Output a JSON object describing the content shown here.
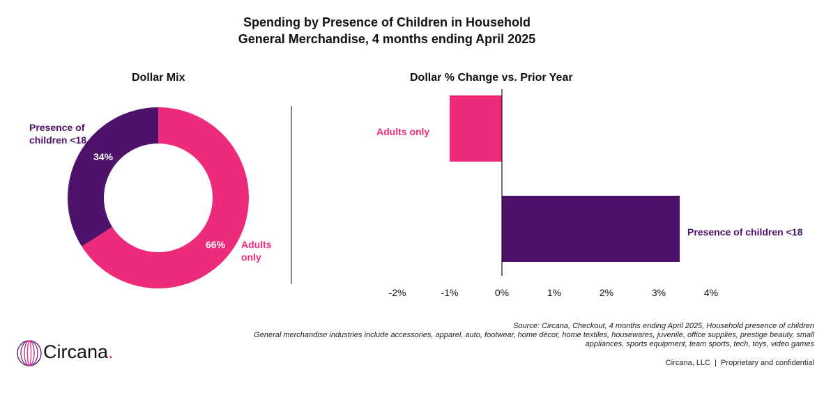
{
  "title": "Spending by Presence of Children in Household",
  "subtitle": "General Merchandise, 4 months ending April 2025",
  "colors": {
    "pink": "#EE2A7B",
    "purple": "#4E126B"
  },
  "chart_data": [
    {
      "type": "pie",
      "title": "Dollar Mix",
      "donut": true,
      "slices": [
        {
          "name": "Adults only",
          "value": 66,
          "label": "66%",
          "color": "#EE2A7B"
        },
        {
          "name": "Presence of children <18",
          "value": 34,
          "label": "34%",
          "color": "#4E126B"
        }
      ]
    },
    {
      "type": "bar",
      "orientation": "horizontal",
      "title": "Dollar % Change vs. Prior Year",
      "categories": [
        "Adults only",
        "Presence of children <18"
      ],
      "values": [
        -1.0,
        3.4
      ],
      "colors": [
        "#EE2A7B",
        "#4E126B"
      ],
      "xlim": [
        -2,
        4
      ],
      "xticks": [
        "-2%",
        "-1%",
        "0%",
        "1%",
        "2%",
        "3%",
        "4%"
      ],
      "grid": false
    }
  ],
  "footer": {
    "source": "Source: Circana, Checkout, 4 months ending April 2025, Household presence of children",
    "note_line1": "General merchandise industries include accessories, apparel, auto, footwear, home décor, home textiles, housewares, juvenile, office supplies, prestige beauty, small",
    "note_line2": "appliances, sports equipment, team sports, tech, toys, video games",
    "confidential": "Circana, LLC  |  Proprietary and confidential"
  },
  "logo": {
    "text": "Circana",
    "dot": "."
  }
}
